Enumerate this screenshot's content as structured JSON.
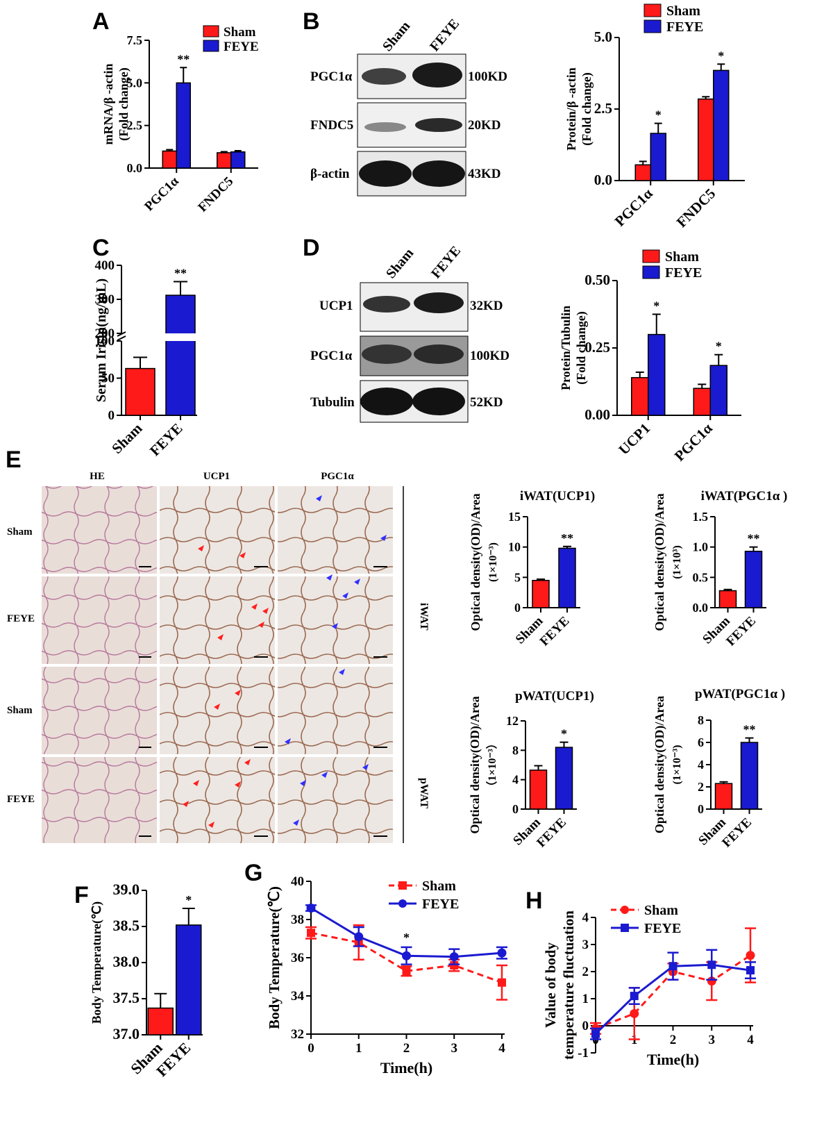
{
  "colors": {
    "sham": "#ff1a1a",
    "feye": "#1a1ad0",
    "axis": "#000000"
  },
  "panels": {
    "A": {
      "label": "A",
      "legend": [
        "Sham",
        "FEYE"
      ]
    },
    "B": {
      "label": "B",
      "blot_lanes": [
        "Sham",
        "FEYE"
      ],
      "blot_rows": [
        "PGC1α",
        "FNDC5",
        "β-actin"
      ],
      "blot_sizes": [
        "100KD",
        "20KD",
        "43KD"
      ],
      "legend": [
        "Sham",
        "FEYE"
      ]
    },
    "C": {
      "label": "C"
    },
    "D": {
      "label": "D",
      "blot_lanes": [
        "Sham",
        "FEYE"
      ],
      "blot_rows": [
        "UCP1",
        "PGC1α",
        "Tubulin"
      ],
      "blot_sizes": [
        "32KD",
        "100KD",
        "52KD"
      ],
      "legend": [
        "Sham",
        "FEYE"
      ]
    },
    "E": {
      "label": "E",
      "columns": [
        "HE",
        "UCP1",
        "PGC1α"
      ],
      "rows": [
        "Sham",
        "FEYE",
        "Sham",
        "FEYE"
      ],
      "tissues": [
        "iWAT",
        "pWAT"
      ]
    },
    "F": {
      "label": "F"
    },
    "G": {
      "label": "G",
      "legend": [
        "Sham",
        "FEYE"
      ]
    },
    "H": {
      "label": "H",
      "legend": [
        "Sham",
        "FEYE"
      ]
    }
  },
  "chart_data": [
    {
      "id": "A",
      "type": "bar",
      "categories": [
        "PGC1α",
        "FNDC5"
      ],
      "series": [
        {
          "name": "Sham",
          "values": [
            1.0,
            0.9
          ],
          "errors": [
            0.08,
            0.06
          ]
        },
        {
          "name": "FEYE",
          "values": [
            5.0,
            0.95
          ],
          "errors": [
            0.9,
            0.07
          ]
        }
      ],
      "ylabel": "mRNA/β -actin",
      "ylabel2": "(Fold change)",
      "ylim": [
        0,
        7.5
      ],
      "yticks": [
        "0.0",
        "2.5",
        "5.0",
        "7.5"
      ],
      "annotations": [
        "**",
        ""
      ]
    },
    {
      "id": "B",
      "type": "bar",
      "categories": [
        "PGC1α",
        "FNDC5"
      ],
      "series": [
        {
          "name": "Sham",
          "values": [
            0.55,
            2.85
          ],
          "errors": [
            0.12,
            0.08
          ]
        },
        {
          "name": "FEYE",
          "values": [
            1.65,
            3.85
          ],
          "errors": [
            0.35,
            0.22
          ]
        }
      ],
      "ylabel": "Protein/β -actin",
      "ylabel2": "(Fold change)",
      "ylim": [
        0,
        5.0
      ],
      "yticks": [
        "0.0",
        "2.5",
        "5.0"
      ],
      "annotations": [
        "*",
        "*"
      ]
    },
    {
      "id": "C",
      "type": "bar",
      "categories": [
        "Sham",
        "FEYE"
      ],
      "broken_axis": true,
      "values": [
        63,
        312
      ],
      "errors": [
        15,
        40
      ],
      "ylabel": "Serum Irisin(ng/mL)",
      "yticks_lower": [
        "0",
        "50",
        "100"
      ],
      "yticks_upper": [
        "200",
        "300",
        "400"
      ],
      "annotations": [
        "",
        "**"
      ]
    },
    {
      "id": "D",
      "type": "bar",
      "categories": [
        "UCP1",
        "PGC1α"
      ],
      "series": [
        {
          "name": "Sham",
          "values": [
            0.14,
            0.1
          ],
          "errors": [
            0.02,
            0.015
          ]
        },
        {
          "name": "FEYE",
          "values": [
            0.3,
            0.185
          ],
          "errors": [
            0.075,
            0.04
          ]
        }
      ],
      "ylabel": "Protein/Tubulin",
      "ylabel2": "(Fold change)",
      "ylim": [
        0,
        0.5
      ],
      "yticks": [
        "0.00",
        "0.25",
        "0.50"
      ],
      "annotations": [
        "*",
        "*"
      ]
    },
    {
      "id": "E1",
      "type": "bar",
      "title": "iWAT(UCP1)",
      "categories": [
        "Sham",
        "FEYE"
      ],
      "values": [
        4.5,
        9.8
      ],
      "errors": [
        0.2,
        0.3
      ],
      "ylabel": "Optical density(OD)/Area",
      "ylabel2": "(1×10⁻³)",
      "ylim": [
        0,
        15
      ],
      "yticks": [
        "0",
        "5",
        "10",
        "15"
      ],
      "annotations": [
        "",
        "**"
      ]
    },
    {
      "id": "E2",
      "type": "bar",
      "title": "iWAT(PGC1α )",
      "categories": [
        "Sham",
        "FEYE"
      ],
      "values": [
        0.28,
        0.93
      ],
      "errors": [
        0.02,
        0.07
      ],
      "ylabel": "Optical density(OD)/Area",
      "ylabel2": "(1×10³)",
      "ylim": [
        0,
        1.5
      ],
      "yticks": [
        "0.0",
        "0.5",
        "1.0",
        "1.5"
      ],
      "annotations": [
        "",
        "**"
      ]
    },
    {
      "id": "E3",
      "type": "bar",
      "title": "pWAT(UCP1)",
      "categories": [
        "Sham",
        "FEYE"
      ],
      "values": [
        5.3,
        8.4
      ],
      "errors": [
        0.6,
        0.7
      ],
      "ylabel": "Optical density(OD)/Area",
      "ylabel2": "（1×10⁻³）",
      "ylim": [
        0,
        12
      ],
      "yticks": [
        "0",
        "4",
        "8",
        "12"
      ],
      "annotations": [
        "",
        "*"
      ]
    },
    {
      "id": "E4",
      "type": "bar",
      "title": "pWAT(PGC1α )",
      "categories": [
        "Sham",
        "FEYE"
      ],
      "values": [
        2.3,
        6.0
      ],
      "errors": [
        0.15,
        0.4
      ],
      "ylabel": "Optical density(OD)/Area",
      "ylabel2": "(1×10⁻³)",
      "ylim": [
        0,
        8
      ],
      "yticks": [
        "0",
        "2",
        "4",
        "6",
        "8"
      ],
      "annotations": [
        "",
        "**"
      ]
    },
    {
      "id": "F",
      "type": "bar",
      "categories": [
        "Sham",
        "FEYE"
      ],
      "values": [
        37.37,
        38.52
      ],
      "errors": [
        0.2,
        0.23
      ],
      "ylabel": "Body Temperature(℃)",
      "ylim": [
        37.0,
        39.0
      ],
      "yticks": [
        "37.0",
        "37.5",
        "38.0",
        "38.5",
        "39.0"
      ],
      "annotations": [
        "",
        "*"
      ]
    },
    {
      "id": "G",
      "type": "line",
      "x": [
        0,
        1,
        2,
        3,
        4
      ],
      "series": [
        {
          "name": "Sham",
          "values": [
            37.3,
            36.8,
            35.3,
            35.6,
            34.7
          ],
          "errors": [
            0.3,
            0.9,
            0.25,
            0.3,
            0.9
          ]
        },
        {
          "name": "FEYE",
          "values": [
            38.6,
            37.1,
            36.1,
            36.05,
            36.25
          ],
          "errors": [
            0.15,
            0.5,
            0.45,
            0.4,
            0.3
          ]
        }
      ],
      "xlabel": "Time(h)",
      "ylabel": "Body Temperature(℃)",
      "xlim": [
        0,
        4
      ],
      "ylim": [
        32,
        40
      ],
      "xticks": [
        "0",
        "1",
        "2",
        "3",
        "4"
      ],
      "yticks": [
        "32",
        "34",
        "36",
        "38",
        "40"
      ],
      "annotations": [
        {
          "x": 2,
          "text": "*"
        }
      ]
    },
    {
      "id": "H",
      "type": "line",
      "x": [
        0,
        1,
        2,
        3,
        4
      ],
      "series": [
        {
          "name": "Sham",
          "values": [
            -0.1,
            0.45,
            2.0,
            1.65,
            2.6
          ],
          "errors": [
            0.2,
            0.95,
            0.3,
            0.7,
            1.0
          ]
        },
        {
          "name": "FEYE",
          "values": [
            -0.3,
            1.1,
            2.2,
            2.25,
            2.05
          ],
          "errors": [
            0.2,
            0.3,
            0.5,
            0.55,
            0.3
          ]
        }
      ],
      "xlabel": "Time(h)",
      "ylabel": "Value of body",
      "ylabel2": "temperature fluctuation",
      "xlim": [
        0,
        4
      ],
      "ylim": [
        -1,
        4
      ],
      "xticks": [
        "0",
        "1",
        "2",
        "3",
        "4"
      ],
      "yticks": [
        "-1",
        "0",
        "1",
        "2",
        "3",
        "4"
      ]
    }
  ]
}
